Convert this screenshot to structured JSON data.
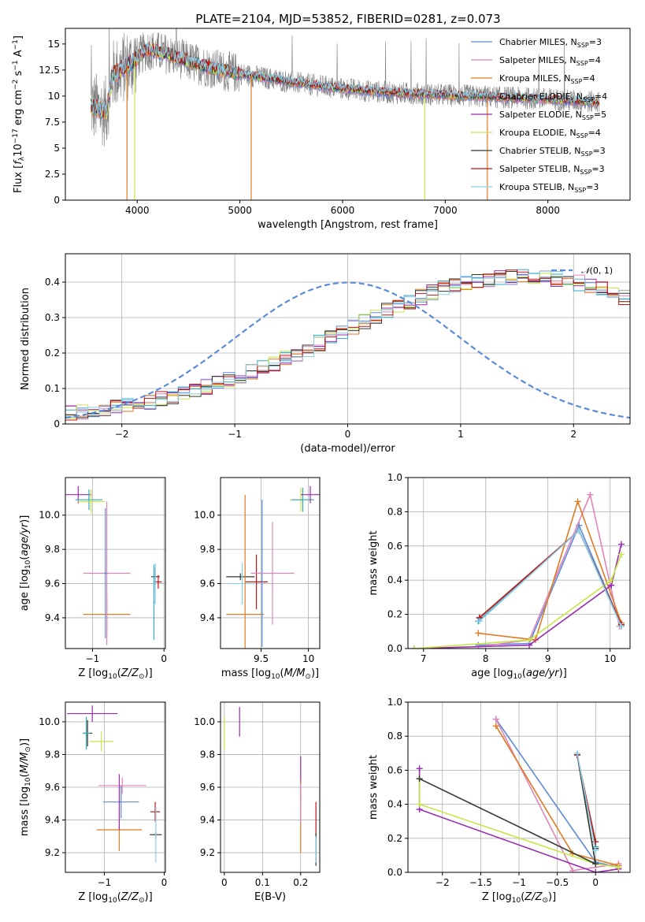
{
  "figure": {
    "title": "PLATE=2104, MJD=53852, FIBERID=0281, z=0.073"
  },
  "colors": {
    "chabrier_miles": "#5b8bdb",
    "salpeter_miles": "#e085b9",
    "kroupa_miles": "#e07b22",
    "chabrier_elodie": "#32a9c2",
    "salpeter_elodie": "#9a2bb0",
    "kroupa_elodie": "#c7e646",
    "chabrier_stelib": "#2e3b2e",
    "salpeter_stelib": "#bf1616",
    "kroupa_stelib": "#8ccfe8",
    "observed": "#808080",
    "gaussian": "#5b8bdb"
  },
  "chart_data": [
    {
      "id": "spectrum",
      "type": "line",
      "title": "PLATE=2104, MJD=53852, FIBERID=0281, z=0.073",
      "xlabel": "wavelength [Angstrom, rest frame]",
      "ylabel": "Flux [f_λ 10^-17 erg cm^-2 s^-1 A^-1]",
      "xlim": [
        3300,
        8800
      ],
      "ylim": [
        0,
        16.5
      ],
      "xticks": [
        4000,
        5000,
        6000,
        7000,
        8000
      ],
      "yticks": [
        0.0,
        2.5,
        5.0,
        7.5,
        10.0,
        12.5,
        15.0
      ],
      "legend_position": "top-right",
      "continuum": [
        [
          3550,
          9.0
        ],
        [
          3700,
          8.5
        ],
        [
          3760,
          12.0
        ],
        [
          3950,
          13.2
        ],
        [
          4100,
          14.5
        ],
        [
          4300,
          14.0
        ],
        [
          4500,
          13.3
        ],
        [
          4800,
          12.5
        ],
        [
          5200,
          11.8
        ],
        [
          5600,
          11.2
        ],
        [
          6000,
          10.7
        ],
        [
          6500,
          10.3
        ],
        [
          7000,
          10.1
        ],
        [
          7500,
          9.9
        ],
        [
          8000,
          9.7
        ],
        [
          8500,
          9.4
        ]
      ],
      "series": [
        {
          "name": "Chabrier MILES",
          "nssp": "3"
        },
        {
          "name": "Salpeter MILES",
          "nssp": "4"
        },
        {
          "name": "Kroupa MILES",
          "nssp": "4"
        },
        {
          "name": "Chabrier ELODIE",
          "nssp": "4"
        },
        {
          "name": "Salpeter ELODIE",
          "nssp": "5"
        },
        {
          "name": "Kroupa ELODIE",
          "nssp": "4"
        },
        {
          "name": "Chabrier STELIB",
          "nssp": "3"
        },
        {
          "name": "Salpeter STELIB",
          "nssp": "3"
        },
        {
          "name": "Kroupa STELIB",
          "nssp": "3"
        }
      ]
    },
    {
      "id": "residuals",
      "type": "histogram",
      "xlabel": "(data-model)/error",
      "ylabel": "Normed distribution",
      "xlim": [
        -2.5,
        2.5
      ],
      "ylim": [
        0,
        0.48
      ],
      "xticks": [
        -2,
        -1,
        0,
        1,
        2
      ],
      "yticks": [
        0.0,
        0.1,
        0.2,
        0.3,
        0.4
      ],
      "legend_entry": "N(0,1)",
      "legend_position": "top-right",
      "bin_width": 0.1,
      "approx_density": [
        0.03,
        0.033,
        0.037,
        0.041,
        0.046,
        0.051,
        0.057,
        0.064,
        0.071,
        0.079,
        0.087,
        0.096,
        0.105,
        0.115,
        0.126,
        0.137,
        0.148,
        0.16,
        0.172,
        0.184,
        0.196,
        0.21,
        0.228,
        0.243,
        0.262,
        0.275,
        0.29,
        0.304,
        0.318,
        0.33,
        0.345,
        0.358,
        0.37,
        0.381,
        0.39,
        0.397,
        0.402,
        0.405,
        0.41,
        0.413,
        0.415,
        0.415,
        0.413,
        0.409,
        0.404,
        0.398,
        0.39,
        0.38,
        0.37,
        0.358,
        0.345,
        0.33,
        0.316,
        0.301,
        0.286,
        0.27,
        0.255,
        0.239,
        0.223,
        0.208,
        0.192,
        0.177,
        0.162,
        0.148,
        0.135,
        0.122,
        0.11,
        0.099,
        0.089,
        0.079,
        0.07,
        0.062,
        0.055,
        0.048,
        0.042,
        0.037,
        0.032,
        0.028,
        0.025,
        0.023
      ],
      "gaussian": {
        "mu": 0,
        "sigma": 1
      }
    },
    {
      "id": "age_vs_Z",
      "type": "errorbar",
      "xlabel": "Z [log10(Z/Z☉)]",
      "ylabel": "age [log10(age/yr)]",
      "xlim": [
        -1.38,
        0.02
      ],
      "ylim": [
        9.22,
        10.22
      ],
      "xticks": [
        -1,
        0
      ],
      "yticks": [
        9.4,
        9.6,
        9.8,
        10.0
      ],
      "points": [
        {
          "s": "salpeter_elodie",
          "x": -1.2,
          "xe": 0.19,
          "y": 10.12,
          "ye": 0.05
        },
        {
          "s": "chabrier_elodie",
          "x": -1.05,
          "xe": 0.19,
          "y": 10.09,
          "ye": 0.06
        },
        {
          "s": "kroupa_elodie",
          "x": -1.02,
          "xe": 0.19,
          "y": 10.08,
          "ye": 0.07
        },
        {
          "s": "kroupa_miles",
          "x": -0.8,
          "xe": 0.33,
          "y": 9.42,
          "ye": 0.12
        },
        {
          "s": "salpeter_miles",
          "x": -0.8,
          "xe": 0.33,
          "y": 9.66,
          "ye": 0.42
        },
        {
          "s": "chabrier_miles",
          "x": -0.82,
          "xe": 0.02,
          "y": 9.66,
          "ye": 0.38
        },
        {
          "s": "chabrier_stelib",
          "x": -0.12,
          "xe": 0.06,
          "y": 9.64,
          "ye": 0.05
        },
        {
          "s": "salpeter_stelib",
          "x": -0.08,
          "xe": 0.05,
          "y": 9.61,
          "ye": 0.04
        },
        {
          "s": "kroupa_stelib",
          "x": -0.12,
          "xe": 0.01,
          "y": 9.6,
          "ye": 0.12
        },
        {
          "s": "chabrier_elodie",
          "x": -0.14,
          "xe": 0.01,
          "y": 9.49,
          "ye": 0.22
        }
      ]
    },
    {
      "id": "age_vs_mass",
      "type": "errorbar",
      "xlabel": "mass [log10(M/M☉)]",
      "ylabel": "",
      "xlim": [
        9.07,
        10.12
      ],
      "ylim": [
        9.22,
        10.22
      ],
      "xticks": [
        9.5,
        10.0
      ],
      "yticks": [
        9.4,
        9.6,
        9.8,
        10.0
      ],
      "points": [
        {
          "s": "chabrier_stelib",
          "x": 9.28,
          "xe": 0.15,
          "y": 9.64,
          "ye": 0.02
        },
        {
          "s": "kroupa_stelib",
          "x": 9.3,
          "xe": 0.15,
          "y": 9.6,
          "ye": 0.12
        },
        {
          "s": "salpeter_stelib",
          "x": 9.45,
          "xe": 0.12,
          "y": 9.61,
          "ye": 0.16
        },
        {
          "s": "kroupa_miles",
          "x": 9.33,
          "xe": 0.2,
          "y": 9.42,
          "ye": 0.7
        },
        {
          "s": "chabrier_miles",
          "x": 9.51,
          "xe": 0.02,
          "y": 9.66,
          "ye": 0.43
        },
        {
          "s": "salpeter_miles",
          "x": 9.62,
          "xe": 0.23,
          "y": 9.66,
          "ye": 0.3
        },
        {
          "s": "kroupa_elodie",
          "x": 9.92,
          "xe": 0.12,
          "y": 10.09,
          "ye": 0.07
        },
        {
          "s": "chabrier_elodie",
          "x": 9.94,
          "xe": 0.12,
          "y": 10.09,
          "ye": 0.07
        },
        {
          "s": "salpeter_elodie",
          "x": 10.02,
          "xe": 0.1,
          "y": 10.12,
          "ye": 0.05
        }
      ]
    },
    {
      "id": "weight_vs_age",
      "type": "line",
      "xlabel": "age [log10(age/yr)]",
      "ylabel": "mass weight",
      "xlim": [
        6.75,
        10.32
      ],
      "ylim": [
        0,
        1.0
      ],
      "xticks": [
        7,
        8,
        9,
        10
      ],
      "yticks": [
        0.0,
        0.2,
        0.4,
        0.6,
        0.8,
        1.0
      ],
      "series": [
        {
          "s": "chabrier_miles",
          "x": [
            7.88,
            8.7,
            9.5,
            10.18
          ],
          "y": [
            0.02,
            0.03,
            0.72,
            0.14
          ]
        },
        {
          "s": "salpeter_miles",
          "x": [
            7.88,
            8.7,
            9.68,
            10.15
          ],
          "y": [
            0.01,
            0.05,
            0.9,
            0.13
          ]
        },
        {
          "s": "kroupa_miles",
          "x": [
            7.88,
            8.8,
            9.48,
            10.18
          ],
          "y": [
            0.09,
            0.05,
            0.86,
            0.15
          ]
        },
        {
          "s": "chabrier_elodie",
          "x": [
            7.88,
            9.5,
            10.18
          ],
          "y": [
            0.16,
            0.69,
            0.13
          ]
        },
        {
          "s": "salpeter_elodie",
          "x": [
            6.85,
            8.7,
            10.02,
            10.18
          ],
          "y": [
            0.0,
            0.02,
            0.37,
            0.61
          ]
        },
        {
          "s": "kroupa_elodie",
          "x": [
            6.85,
            8.7,
            10.02,
            10.18
          ],
          "y": [
            0.0,
            0.05,
            0.4,
            0.55
          ]
        },
        {
          "s": "chabrier_stelib",
          "x": [
            7.9,
            9.5,
            10.18
          ],
          "y": [
            0.18,
            0.69,
            0.14
          ]
        },
        {
          "s": "salpeter_stelib",
          "x": [
            7.9,
            9.5,
            10.18
          ],
          "y": [
            0.18,
            0.69,
            0.14
          ]
        },
        {
          "s": "kroupa_stelib",
          "x": [
            7.9,
            9.5,
            10.18
          ],
          "y": [
            0.16,
            0.69,
            0.13
          ]
        }
      ]
    },
    {
      "id": "mass_vs_Z",
      "type": "errorbar",
      "xlabel": "Z [log10(Z/Z☉)]",
      "ylabel": "mass [log10(M/M☉)]",
      "xlim": [
        -1.65,
        0.02
      ],
      "ylim": [
        9.08,
        10.12
      ],
      "xticks": [
        -1,
        0
      ],
      "yticks": [
        9.2,
        9.4,
        9.6,
        9.8,
        10.0
      ],
      "points": [
        {
          "s": "salpeter_elodie",
          "x": -1.2,
          "xe": 0.42,
          "y": 10.05,
          "ye": 0.05
        },
        {
          "s": "chabrier_stelib",
          "x": -1.28,
          "xe": 0.08,
          "y": 9.93,
          "ye": 0.08
        },
        {
          "s": "chabrier_elodie",
          "x": -1.3,
          "xe": 0.06,
          "y": 9.93,
          "ye": 0.1
        },
        {
          "s": "kroupa_elodie",
          "x": -1.05,
          "xe": 0.2,
          "y": 9.88,
          "ye": 0.06
        },
        {
          "s": "salpeter_miles",
          "x": -0.7,
          "xe": 0.4,
          "y": 9.61,
          "ye": 0.05
        },
        {
          "s": "chabrier_miles",
          "x": -0.72,
          "xe": 0.3,
          "y": 9.51,
          "ye": 0.1
        },
        {
          "s": "kroupa_miles",
          "x": -0.75,
          "xe": 0.38,
          "y": 9.34,
          "ye": 0.13
        },
        {
          "s": "salpeter_elodie",
          "x": -0.75,
          "xe": 0.01,
          "y": 9.51,
          "ye": 0.17
        },
        {
          "s": "salpeter_stelib",
          "x": -0.15,
          "xe": 0.08,
          "y": 9.45,
          "ye": 0.06
        },
        {
          "s": "chabrier_stelib",
          "x": -0.14,
          "xe": 0.1,
          "y": 9.31,
          "ye": 0.02
        },
        {
          "s": "kroupa_stelib",
          "x": -0.14,
          "xe": 0.01,
          "y": 9.31,
          "ye": 0.17
        }
      ]
    },
    {
      "id": "mass_vs_EBV",
      "type": "errorbar",
      "xlabel": "E(B-V)",
      "ylabel": "",
      "xlim": [
        -0.01,
        0.25
      ],
      "ylim": [
        9.08,
        10.12
      ],
      "xticks": [
        0.0,
        0.1,
        0.2
      ],
      "yticks": [
        9.2,
        9.4,
        9.6,
        9.8,
        10.0
      ],
      "points": [
        {
          "s": "kroupa_elodie",
          "x": 0.0,
          "xe": 0.0,
          "y": 9.93,
          "ye": 0.1
        },
        {
          "s": "salpeter_elodie",
          "x": 0.04,
          "xe": 0.0,
          "y": 10.0,
          "ye": 0.09
        },
        {
          "s": "salpeter_elodie",
          "x": 0.2,
          "xe": 0.0,
          "y": 9.64,
          "ye": 0.15
        },
        {
          "s": "kroupa_miles",
          "x": 0.2,
          "xe": 0.0,
          "y": 9.42,
          "ye": 0.22
        },
        {
          "s": "salpeter_miles",
          "x": 0.2,
          "xe": 0.0,
          "y": 9.5,
          "ye": 0.12
        },
        {
          "s": "salpeter_stelib",
          "x": 0.24,
          "xe": 0.0,
          "y": 9.33,
          "ye": 0.18
        },
        {
          "s": "chabrier_stelib",
          "x": 0.24,
          "xe": 0.0,
          "y": 9.22,
          "ye": 0.1
        },
        {
          "s": "kroupa_stelib",
          "x": 0.24,
          "xe": 0.0,
          "y": 9.22,
          "ye": 0.08
        }
      ]
    },
    {
      "id": "weight_vs_Z",
      "type": "line",
      "xlabel": "Z [log10(Z/Z☉)]",
      "ylabel": "mass weight",
      "xlim": [
        -2.45,
        0.45
      ],
      "ylim": [
        0,
        1.0
      ],
      "xticks": [
        -2.0,
        -1.5,
        -1.0,
        -0.5,
        0.0
      ],
      "yticks": [
        0.0,
        0.2,
        0.4,
        0.6,
        0.8,
        1.0
      ],
      "series": [
        {
          "s": "chabrier_miles",
          "x": [
            -1.3,
            0.0,
            0.3
          ],
          "y": [
            0.9,
            0.06,
            0.03
          ]
        },
        {
          "s": "salpeter_miles",
          "x": [
            -1.3,
            -0.3,
            0.3
          ],
          "y": [
            0.9,
            0.01,
            0.05
          ]
        },
        {
          "s": "kroupa_miles",
          "x": [
            -1.3,
            -0.3,
            0.3
          ],
          "y": [
            0.86,
            0.11,
            0.04
          ]
        },
        {
          "s": "chabrier_elodie",
          "x": [
            -0.24,
            0.0
          ],
          "y": [
            0.69,
            0.15
          ]
        },
        {
          "s": "salpeter_elodie",
          "x": [
            -2.3,
            -2.3,
            0.0,
            0.3
          ],
          "y": [
            0.61,
            0.37,
            0.0,
            0.02
          ]
        },
        {
          "s": "kroupa_elodie",
          "x": [
            -2.3,
            -2.3,
            0.0,
            0.3
          ],
          "y": [
            0.55,
            0.4,
            0.05,
            0.03
          ]
        },
        {
          "s": "chabrier_stelib",
          "x": [
            -2.3,
            0.0,
            -0.24,
            0.0
          ],
          "y": [
            0.55,
            0.05,
            0.69,
            0.14
          ]
        },
        {
          "s": "salpeter_stelib",
          "x": [
            -0.24,
            0.0
          ],
          "y": [
            0.69,
            0.18
          ]
        },
        {
          "s": "kroupa_stelib",
          "x": [
            -0.24,
            0.0
          ],
          "y": [
            0.7,
            0.13
          ]
        }
      ]
    }
  ]
}
